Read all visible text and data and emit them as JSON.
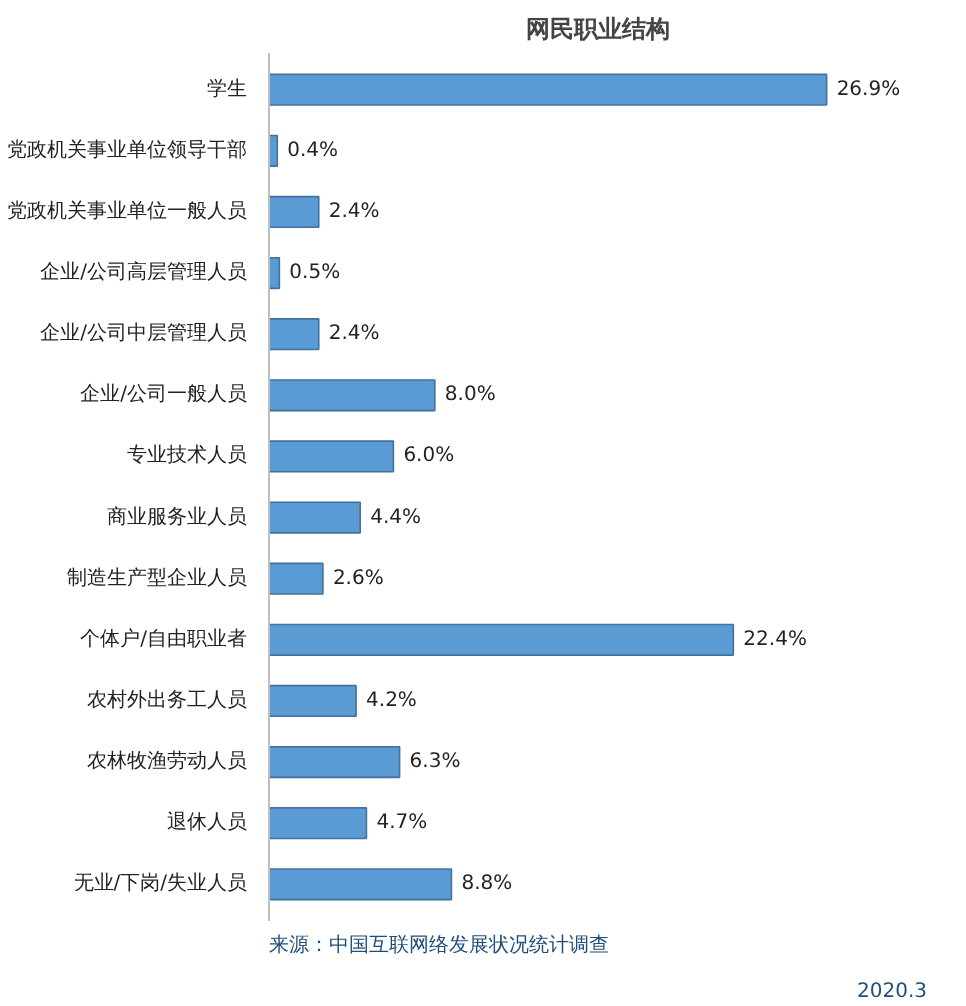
{
  "chart_data": {
    "type": "bar",
    "orientation": "horizontal",
    "title": "网民职业结构",
    "categories": [
      "学生",
      "党政机关事业单位领导干部",
      "党政机关事业单位一般人员",
      "企业/公司高层管理人员",
      "企业/公司中层管理人员",
      "企业/公司一般人员",
      "专业技术人员",
      "商业服务业人员",
      "制造生产型企业人员",
      "个体户/自由职业者",
      "农村外出务工人员",
      "农林牧渔劳动人员",
      "退休人员",
      "无业/下岗/失业人员"
    ],
    "values": [
      26.9,
      0.4,
      2.4,
      0.5,
      2.4,
      8.0,
      6.0,
      4.4,
      2.6,
      22.4,
      4.2,
      6.3,
      4.7,
      8.8
    ],
    "value_labels": [
      "26.9%",
      "0.4%",
      "2.4%",
      "0.5%",
      "2.4%",
      "8.0%",
      "6.0%",
      "4.4%",
      "2.6%",
      "22.4%",
      "4.2%",
      "6.3%",
      "4.7%",
      "8.8%"
    ],
    "color": "#5b9bd5",
    "tick_labels": "y",
    "grid": false,
    "annotations": [
      "来源：中国互联网络发展状况统计调查",
      "2020.3"
    ]
  }
}
